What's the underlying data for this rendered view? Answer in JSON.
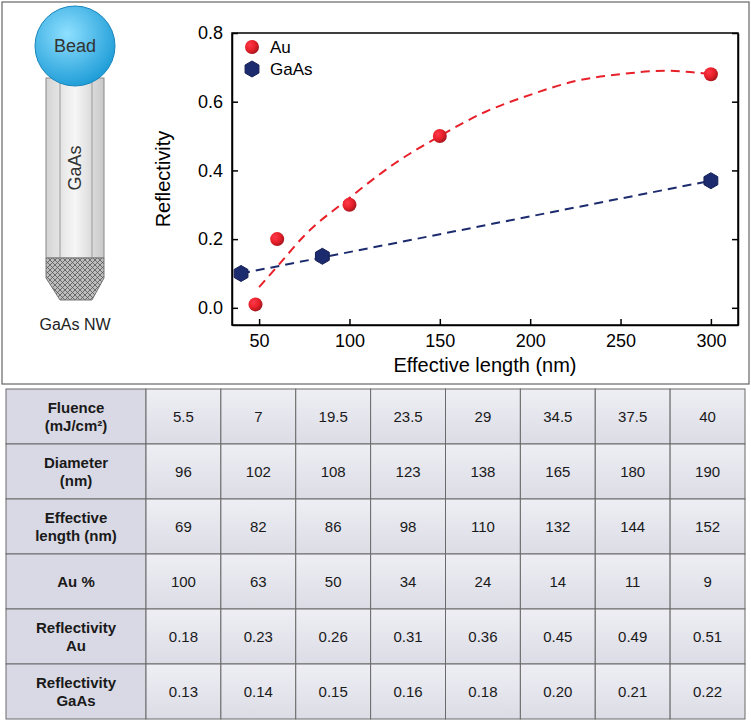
{
  "chart_data": {
    "type": "scatter",
    "x_label": "Effective length (nm)",
    "y_label": "Reflectivity",
    "xlim": [
      35,
      315
    ],
    "xticks": [
      50,
      100,
      150,
      200,
      250,
      300
    ],
    "ylim": [
      -0.05,
      0.8
    ],
    "yticks": [
      {
        "value": 0,
        "label": "0.0"
      },
      0.2,
      0.4,
      0.6,
      0.8
    ],
    "legend": "upper left",
    "series": [
      {
        "name": "Au",
        "color": "#e8202a",
        "marker": "sphere",
        "line_style": "dashed",
        "x": [
          48,
          60,
          100,
          150,
          300
        ],
        "values": [
          0.01,
          0.2,
          0.3,
          0.5,
          0.68
        ],
        "fit_x": [
          50,
          60,
          75,
          100,
          125,
          150,
          175,
          200,
          225,
          250,
          275,
          300
        ],
        "fit_values": [
          0.06,
          0.12,
          0.21,
          0.32,
          0.42,
          0.5,
          0.57,
          0.62,
          0.66,
          0.68,
          0.69,
          0.68
        ]
      },
      {
        "name": "GaAs",
        "color": "#1c2a6e",
        "marker": "hexagon",
        "line_style": "dashed",
        "x": [
          40,
          85,
          300
        ],
        "values": [
          0.1,
          0.15,
          0.37
        ],
        "fit_x": [
          40,
          300
        ],
        "fit_values": [
          0.1,
          0.37
        ]
      }
    ]
  },
  "diagram": {
    "bead": "Bead",
    "wire": "GaAs",
    "caption": "GaAs NW"
  },
  "table": {
    "rows": [
      [
        "Fluence (mJ/cm²)",
        "5.5",
        "7",
        "19.5",
        "23.5",
        "29",
        "34.5",
        "37.5",
        "40"
      ],
      [
        "Diameter (nm)",
        "96",
        "102",
        "108",
        "123",
        "138",
        "165",
        "180",
        "190"
      ],
      [
        "Effective length (nm)",
        "69",
        "82",
        "86",
        "98",
        "110",
        "132",
        "144",
        "152"
      ],
      [
        "Au %",
        "100",
        "63",
        "50",
        "34",
        "24",
        "14",
        "11",
        "9"
      ],
      [
        "Reflectivity Au",
        "0.18",
        "0.23",
        "0.26",
        "0.31",
        "0.36",
        "0.45",
        "0.49",
        "0.51"
      ],
      [
        "Reflectivity GaAs",
        "0.13",
        "0.14",
        "0.15",
        "0.16",
        "0.18",
        "0.20",
        "0.21",
        "0.22"
      ]
    ]
  }
}
